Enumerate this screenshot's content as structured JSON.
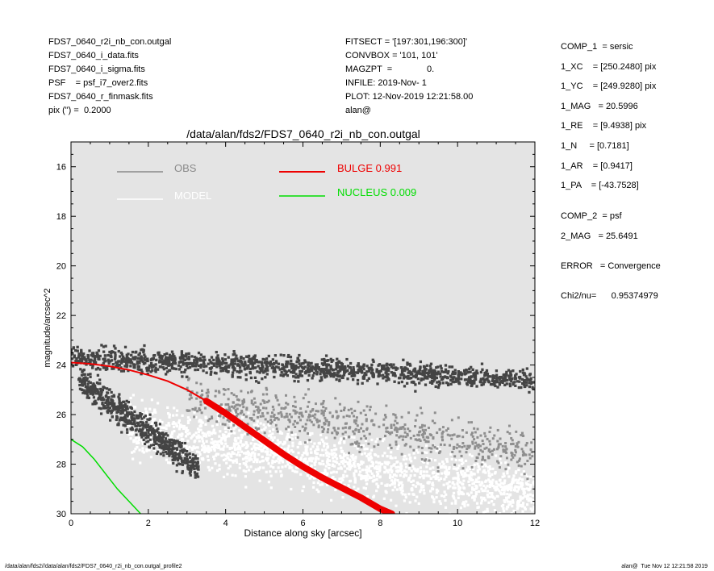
{
  "header_left": [
    "FDS7_0640_r2i_nb_con.outgal",
    "FDS7_0640_i_data.fits",
    "FDS7_0640_i_sigma.fits",
    "PSF    = psf_i7_over2.fits",
    "FDS7_0640_r_finmask.fits",
    "pix (\") =  0.2000"
  ],
  "header_mid": [
    "FITSECT = '[197:301,196:300]'",
    "CONVBOX = '101, 101'",
    "MAGZPT  =              0.",
    "INFILE: 2019-Nov- 1",
    "PLOT: 12-Nov-2019 12:21:58.00",
    "alan@"
  ],
  "side_panel": [
    "COMP_1  = sersic",
    "1_XC    = [250.2480] pix",
    "1_YC    = [249.9280] pix",
    "1_MAG   = 20.5996",
    "1_RE    = [9.4938] pix",
    "1_N     = [0.7181]",
    "1_AR    = [0.9417]",
    "1_PA    = [-43.7528]",
    "COMP_2  = psf",
    "2_MAG   = 25.6491",
    "ERROR   = Convergence",
    "Chi2/nu=      0.95374979"
  ],
  "footer": {
    "left": "/data/alan/fds2//data/alan/fds2/FDS7_0640_r2i_nb_con.outgal_profile2",
    "right": "alan@  Tue Nov 12 12:21:58 2019"
  },
  "colors": {
    "plot_bg": "#e4e4e4",
    "obs": "#444444",
    "obs_legend": "#8a8a8a",
    "model": "#ffffff",
    "bulge": "#ee0000",
    "nucleus": "#00dd00"
  },
  "chart_data": {
    "type": "scatter",
    "title": "/data/alan/fds2/FDS7_0640_r2i_nb_con.outgal",
    "xlabel": "Distance along sky [arcsec]",
    "ylabel": "magnitude/arcsec^2",
    "xlim": [
      0,
      12
    ],
    "ylim": [
      30,
      15
    ],
    "xticks": [
      "0",
      "2",
      "4",
      "6",
      "8",
      "10",
      "12"
    ],
    "yticks": [
      "16",
      "18",
      "20",
      "22",
      "24",
      "26",
      "28",
      "30"
    ],
    "grid": false,
    "legend_position": "top",
    "legend": [
      {
        "label": "OBS",
        "value": ""
      },
      {
        "label": "MODEL",
        "value": ""
      },
      {
        "label": "BULGE",
        "value": "0.991"
      },
      {
        "label": "NUCLEUS",
        "value": "0.009"
      }
    ],
    "series": [
      {
        "name": "OBS",
        "style": "points",
        "description_bands": [
          {
            "x": [
              0.0,
              12.0
            ],
            "y_center": [
              23.7,
              24.6
            ],
            "spread": 0.9
          },
          {
            "x": [
              0.2,
              3.3
            ],
            "y_center": [
              24.6,
              28.2
            ],
            "spread": 1.1
          },
          {
            "x": [
              3.0,
              12.0
            ],
            "y_center": [
              25.4,
              27.6
            ],
            "spread": 1.8
          }
        ]
      },
      {
        "name": "MODEL",
        "style": "points",
        "description_bands": [
          {
            "x": [
              1.5,
              12.0
            ],
            "y_center": [
              26.5,
              29.3
            ],
            "spread": 2.2
          }
        ]
      },
      {
        "name": "BULGE",
        "style": "line",
        "x": [
          0.0,
          0.5,
          1.0,
          1.5,
          2.0,
          2.5,
          3.0,
          3.5,
          4.0,
          4.5,
          5.0,
          5.5,
          6.0,
          6.5,
          7.0,
          7.5,
          8.0,
          8.3
        ],
        "y": [
          23.9,
          23.95,
          24.05,
          24.2,
          24.4,
          24.65,
          25.0,
          25.45,
          25.95,
          26.5,
          27.05,
          27.6,
          28.1,
          28.55,
          28.95,
          29.35,
          29.8,
          30.0
        ],
        "width_x_end": [
          3.5,
          8.3
        ]
      },
      {
        "name": "NUCLEUS",
        "style": "line",
        "x": [
          0.0,
          0.3,
          0.6,
          0.9,
          1.2,
          1.5,
          1.8
        ],
        "y": [
          27.0,
          27.3,
          27.8,
          28.4,
          29.0,
          29.5,
          30.0
        ]
      }
    ]
  }
}
